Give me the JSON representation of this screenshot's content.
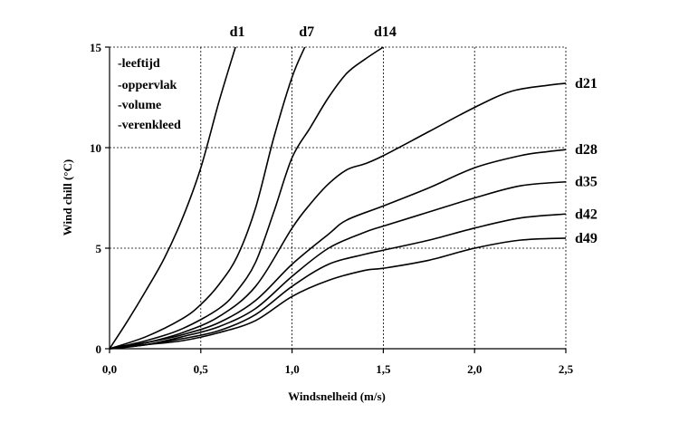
{
  "chart_data": {
    "type": "line",
    "xlabel": "Windsnelheid (m/s)",
    "ylabel": "Wind chill (°C)",
    "xlim": [
      0,
      2.5
    ],
    "ylim": [
      0,
      15
    ],
    "xticks": [
      0,
      0.5,
      1.0,
      1.5,
      2.0,
      2.5
    ],
    "xtick_labels": [
      "0,0",
      "0,5",
      "1,0",
      "1,5",
      "2,0",
      "2,5"
    ],
    "yticks": [
      0,
      5,
      10,
      15
    ],
    "ytick_labels": [
      "0",
      "5",
      "10",
      "15"
    ],
    "grid": true,
    "legend": {
      "placement": "top-left",
      "items": [
        "-leeftijd",
        "-oppervlak",
        "-volume",
        "-verenkleed"
      ]
    },
    "series": [
      {
        "name": "d1",
        "label_position": "top",
        "x": [
          0,
          0.1,
          0.2,
          0.3,
          0.4,
          0.5,
          0.6,
          0.69
        ],
        "y": [
          0,
          1.4,
          2.9,
          4.5,
          6.5,
          9.0,
          12.3,
          15.0
        ]
      },
      {
        "name": "d7",
        "label_position": "top",
        "x": [
          0,
          0.2,
          0.4,
          0.5,
          0.6,
          0.7,
          0.8,
          0.9,
          1.0,
          1.07
        ],
        "y": [
          0,
          0.6,
          1.5,
          2.2,
          3.2,
          4.6,
          7.0,
          10.5,
          13.5,
          15.0
        ]
      },
      {
        "name": "d14",
        "label_position": "top",
        "x": [
          0,
          0.2,
          0.4,
          0.6,
          0.7,
          0.8,
          0.9,
          1.0,
          1.1,
          1.2,
          1.3,
          1.4,
          1.5
        ],
        "y": [
          0,
          0.4,
          1.0,
          2.0,
          2.9,
          4.3,
          6.8,
          9.5,
          11.0,
          12.5,
          13.7,
          14.4,
          15.0
        ]
      },
      {
        "name": "d21",
        "label_position": "right",
        "x": [
          0,
          0.2,
          0.4,
          0.6,
          0.8,
          1.0,
          1.1,
          1.2,
          1.3,
          1.4,
          1.5,
          1.75,
          2.0,
          2.2,
          2.4,
          2.5
        ],
        "y": [
          0,
          0.3,
          0.8,
          1.6,
          3.1,
          6.0,
          7.2,
          8.2,
          8.9,
          9.2,
          9.6,
          10.8,
          12.0,
          12.8,
          13.1,
          13.2
        ]
      },
      {
        "name": "d28",
        "label_position": "right",
        "x": [
          0,
          0.2,
          0.4,
          0.6,
          0.8,
          1.0,
          1.2,
          1.3,
          1.5,
          1.75,
          2.0,
          2.25,
          2.4,
          2.5
        ],
        "y": [
          0,
          0.3,
          0.7,
          1.3,
          2.4,
          4.2,
          5.7,
          6.4,
          7.1,
          8.0,
          9.0,
          9.6,
          9.8,
          9.9
        ]
      },
      {
        "name": "d35",
        "label_position": "right",
        "x": [
          0,
          0.2,
          0.4,
          0.6,
          0.8,
          1.0,
          1.2,
          1.4,
          1.5,
          1.75,
          2.0,
          2.25,
          2.5
        ],
        "y": [
          0,
          0.2,
          0.6,
          1.1,
          2.0,
          3.6,
          5.0,
          5.8,
          6.1,
          6.8,
          7.5,
          8.1,
          8.3
        ]
      },
      {
        "name": "d42",
        "label_position": "right",
        "x": [
          0,
          0.2,
          0.4,
          0.6,
          0.8,
          1.0,
          1.2,
          1.4,
          1.5,
          1.75,
          2.0,
          2.25,
          2.5
        ],
        "y": [
          0,
          0.2,
          0.5,
          0.9,
          1.7,
          3.1,
          4.2,
          4.7,
          4.9,
          5.4,
          6.0,
          6.5,
          6.7
        ]
      },
      {
        "name": "d49",
        "label_position": "right",
        "x": [
          0,
          0.2,
          0.4,
          0.6,
          0.8,
          1.0,
          1.2,
          1.4,
          1.5,
          1.75,
          2.0,
          2.25,
          2.5
        ],
        "y": [
          0,
          0.2,
          0.4,
          0.8,
          1.4,
          2.6,
          3.4,
          3.9,
          4.0,
          4.4,
          5.0,
          5.4,
          5.5
        ]
      }
    ]
  }
}
